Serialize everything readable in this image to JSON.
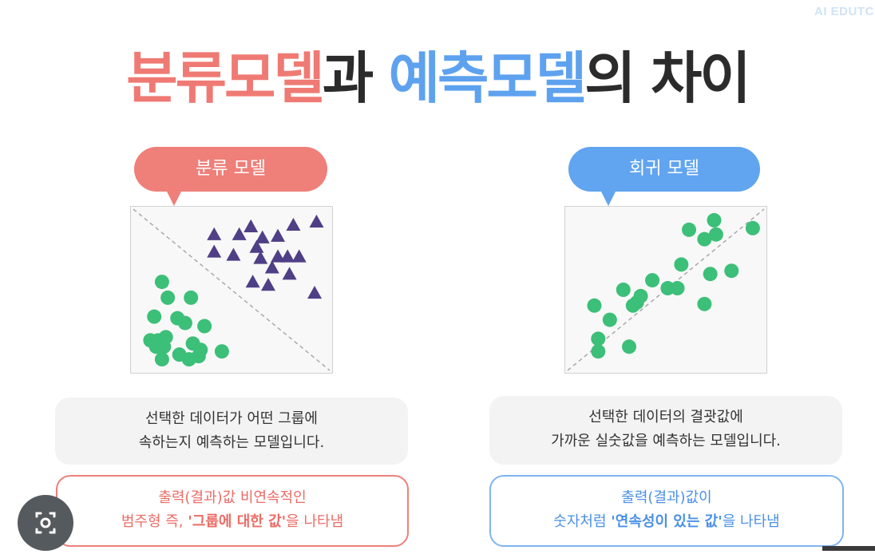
{
  "watermark": "AI EDUTC",
  "title": {
    "part1": "분류모델",
    "part2": "과 ",
    "part3": "예측모델",
    "part4": "의 차이"
  },
  "left": {
    "bubble": "분류 모델",
    "desc_line1": "선택한 데이터가 어떤 그룹에",
    "desc_line2": "속하는지 예측하는 모델입니다.",
    "out_line1": "출력(결과)값 비연속적인",
    "out_line2_pre": "범주형 즉, ",
    "out_line2_bold": "'그룹에 대한 값'",
    "out_line2_post": "을 나타냄"
  },
  "right": {
    "bubble": "회귀 모델",
    "desc_line1": "선택한 데이터의 결괏값에",
    "desc_line2": "가까운 실숫값을 예측하는 모델입니다.",
    "out_line1": "출력(결과)값이",
    "out_line2_pre": "숫자처럼 ",
    "out_line2_bold": "'연속성이 있는 값'",
    "out_line2_post": "을 나타냄"
  },
  "colors": {
    "red": "#ef7f79",
    "blue": "#61a4f0",
    "green_point": "#3cbf78",
    "triangle": "#4f3f86",
    "plot_bg": "#f8f8f8"
  },
  "chart_data": [
    {
      "type": "scatter",
      "grid": false,
      "xlim": [
        0,
        10
      ],
      "ylim": [
        0,
        10
      ],
      "reference_line": "dashed, top-left to bottom-right",
      "series": [
        {
          "marker": "triangle",
          "points": [
            [
              6.0,
              9.0
            ],
            [
              8.2,
              9.1
            ],
            [
              9.4,
              9.3
            ],
            [
              4.1,
              8.5
            ],
            [
              5.4,
              8.5
            ],
            [
              6.6,
              8.3
            ],
            [
              7.4,
              8.4
            ],
            [
              6.3,
              7.7
            ],
            [
              4.1,
              7.4
            ],
            [
              5.1,
              7.2
            ],
            [
              6.5,
              7.0
            ],
            [
              7.4,
              7.1
            ],
            [
              7.9,
              7.1
            ],
            [
              8.5,
              7.1
            ],
            [
              7.1,
              6.4
            ],
            [
              8.0,
              6.0
            ],
            [
              6.9,
              5.3
            ],
            [
              6.1,
              5.5
            ],
            [
              9.3,
              4.8
            ]
          ]
        },
        {
          "marker": "circle",
          "points": [
            [
              1.4,
              5.5
            ],
            [
              1.7,
              4.5
            ],
            [
              2.9,
              4.5
            ],
            [
              1.0,
              3.3
            ],
            [
              2.2,
              3.2
            ],
            [
              2.6,
              2.9
            ],
            [
              3.6,
              2.7
            ],
            [
              0.8,
              1.8
            ],
            [
              1.2,
              1.8
            ],
            [
              1.6,
              2.0
            ],
            [
              1.1,
              1.4
            ],
            [
              1.5,
              1.4
            ],
            [
              3.0,
              1.6
            ],
            [
              3.4,
              1.2
            ],
            [
              4.5,
              1.1
            ],
            [
              2.3,
              0.9
            ],
            [
              1.4,
              0.6
            ],
            [
              2.8,
              0.6
            ],
            [
              3.3,
              0.8
            ]
          ]
        }
      ]
    },
    {
      "type": "scatter",
      "grid": false,
      "xlim": [
        0,
        10
      ],
      "ylim": [
        0,
        10
      ],
      "reference_line": "dashed, bottom-left to top-right",
      "series": [
        {
          "marker": "circle",
          "points": [
            [
              7.5,
              9.4
            ],
            [
              6.2,
              8.8
            ],
            [
              7.6,
              8.5
            ],
            [
              7.0,
              8.2
            ],
            [
              9.5,
              8.9
            ],
            [
              5.8,
              6.6
            ],
            [
              7.3,
              6.0
            ],
            [
              8.4,
              6.2
            ],
            [
              4.3,
              5.6
            ],
            [
              2.8,
              5.0
            ],
            [
              5.1,
              5.1
            ],
            [
              5.6,
              5.1
            ],
            [
              3.7,
              4.6
            ],
            [
              3.5,
              4.2
            ],
            [
              3.3,
              4.0
            ],
            [
              1.3,
              4.0
            ],
            [
              2.1,
              3.1
            ],
            [
              7.0,
              4.1
            ],
            [
              1.5,
              1.9
            ],
            [
              1.5,
              1.1
            ],
            [
              3.1,
              1.4
            ]
          ]
        }
      ]
    }
  ]
}
